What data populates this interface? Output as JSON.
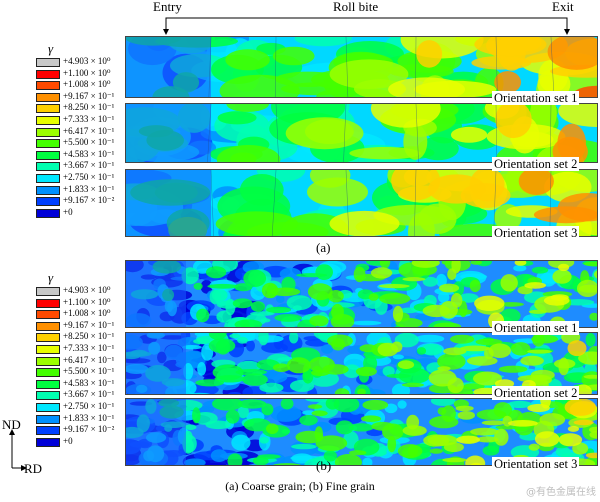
{
  "header": {
    "entry": "Entry",
    "roll_bite": "Roll bite",
    "exit": "Exit"
  },
  "legend": {
    "symbol": "γ",
    "entries": [
      {
        "label": "+4.903 × 10⁰",
        "color": "#c8c8c8"
      },
      {
        "label": "+1.100 × 10⁰",
        "color": "#ff0000"
      },
      {
        "label": "+1.008 × 10⁰",
        "color": "#ff4a00"
      },
      {
        "label": "+9.167 × 10⁻¹",
        "color": "#ff9000"
      },
      {
        "label": "+8.250 × 10⁻¹",
        "color": "#ffd000"
      },
      {
        "label": "+7.333 × 10⁻¹",
        "color": "#e7ff00"
      },
      {
        "label": "+6.417 × 10⁻¹",
        "color": "#9cff00"
      },
      {
        "label": "+5.500 × 10⁻¹",
        "color": "#44ff00"
      },
      {
        "label": "+4.583 × 10⁻¹",
        "color": "#00ff40"
      },
      {
        "label": "+3.667 × 10⁻¹",
        "color": "#00ffb0"
      },
      {
        "label": "+2.750 × 10⁻¹",
        "color": "#00e8ff"
      },
      {
        "label": "+1.833 × 10⁻¹",
        "color": "#0090ff"
      },
      {
        "label": "+9.167 × 10⁻²",
        "color": "#0040ff"
      },
      {
        "label": "+0",
        "color": "#0000d8"
      }
    ]
  },
  "panel_a": {
    "label": "(a)",
    "sets": [
      "Orientation set 1",
      "Orientation set 2",
      "Orientation set 3"
    ]
  },
  "panel_b": {
    "label": "(b)",
    "sets": [
      "Orientation set 1",
      "Orientation set 2",
      "Orientation set 3"
    ]
  },
  "axes": {
    "nd": "ND",
    "rd": "RD"
  },
  "caption": "(a) Coarse grain; (b) Fine grain",
  "watermark": "@有色金属在线"
}
